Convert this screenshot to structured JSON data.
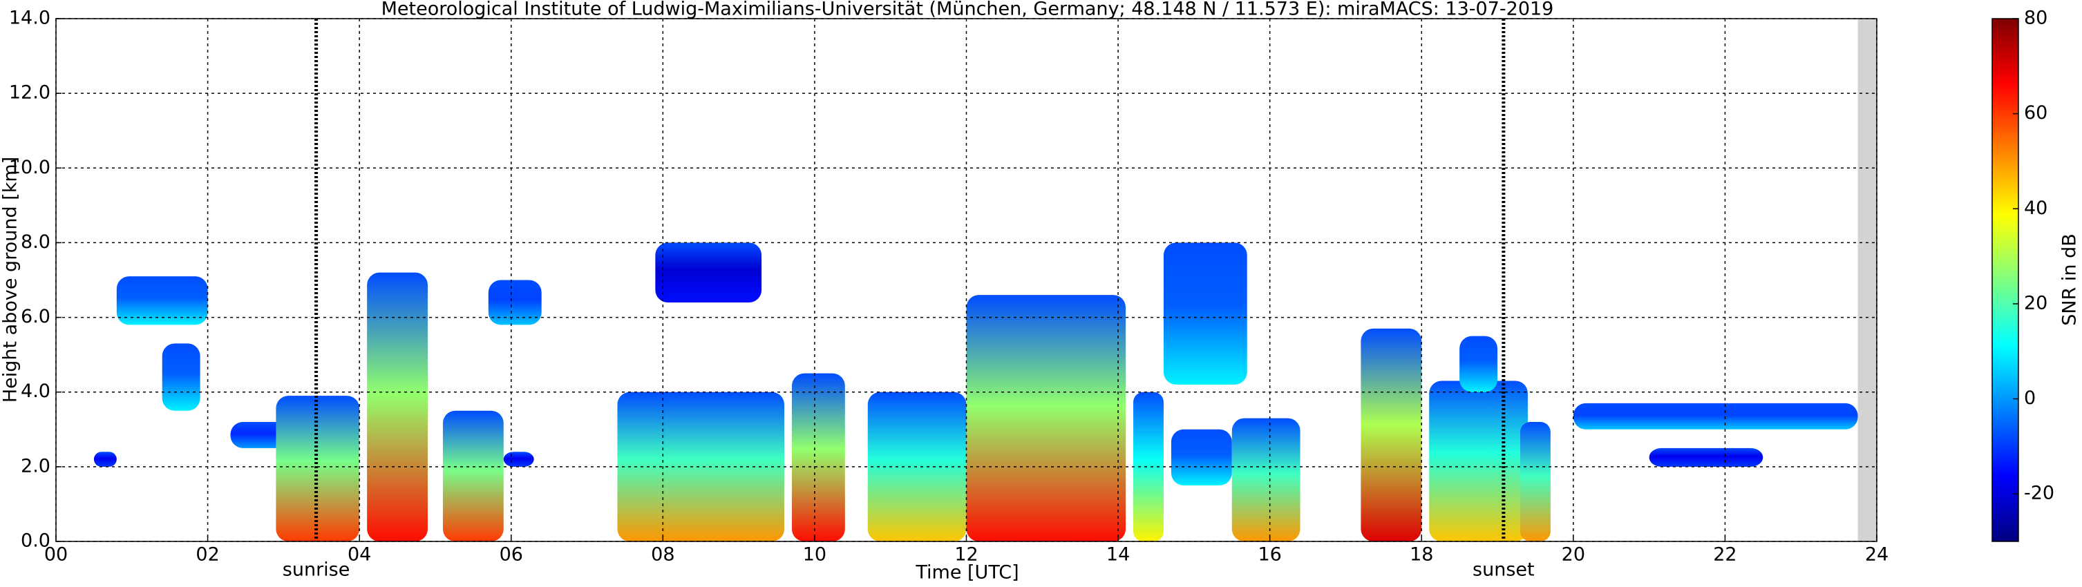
{
  "chart_data": {
    "type": "time-height",
    "title": "Meteorological Institute of Ludwig-Maximilians-Universität (München, Germany; 48.148 N / 11.573 E):    miraMACS: 13-07-2019",
    "xlabel": "Time [UTC]",
    "ylabel": "Height above ground [km]",
    "xlim": [
      0,
      24
    ],
    "xticks": [
      {
        "value": 0,
        "label": "00"
      },
      {
        "value": 2,
        "label": "02"
      },
      {
        "value": 4,
        "label": "04"
      },
      {
        "value": 6,
        "label": "06"
      },
      {
        "value": 8,
        "label": "08"
      },
      10,
      12,
      14,
      16,
      18,
      20,
      22,
      24
    ],
    "ylim": [
      0,
      14
    ],
    "yticks": [
      {
        "value": 0,
        "label": "0.0"
      },
      {
        "value": 2,
        "label": "2.0"
      },
      {
        "value": 4,
        "label": "4.0"
      },
      {
        "value": 6,
        "label": "6.0"
      },
      {
        "value": 8,
        "label": "8.0"
      },
      {
        "value": 10,
        "label": "10.0"
      },
      {
        "value": 12,
        "label": "12.0"
      },
      {
        "value": 14,
        "label": "14.0"
      }
    ],
    "grid": true,
    "no_data_x": [
      23.75,
      24
    ],
    "annotations": [
      {
        "text": "sunrise",
        "x": 3.43
      },
      {
        "text": "sunset",
        "x": 19.08
      }
    ],
    "colorbar": {
      "label": "SNR in dB",
      "clim": [
        -30,
        80
      ],
      "ticks": [
        -20,
        0,
        20,
        40,
        60,
        80
      ],
      "colormap": [
        "#00007f",
        "#0000ff",
        "#0080ff",
        "#00ffff",
        "#80ff80",
        "#ffff00",
        "#ff8000",
        "#ff0000",
        "#7f0000"
      ]
    },
    "echoes": [
      {
        "start": 0.8,
        "end": 2.0,
        "base": 5.8,
        "top": 7.1,
        "snr": 10
      },
      {
        "start": 1.4,
        "end": 1.9,
        "base": 3.5,
        "top": 5.3,
        "snr": 10
      },
      {
        "start": 0.5,
        "end": 0.8,
        "base": 2.0,
        "top": 2.4,
        "snr": -10
      },
      {
        "start": 2.3,
        "end": 3.1,
        "base": 2.5,
        "top": 3.2,
        "snr": 0
      },
      {
        "start": 2.9,
        "end": 4.0,
        "base": 0,
        "top": 3.9,
        "snr": 60
      },
      {
        "start": 4.1,
        "end": 4.9,
        "base": 0,
        "top": 7.2,
        "snr": 65
      },
      {
        "start": 5.1,
        "end": 5.9,
        "base": 0,
        "top": 3.5,
        "snr": 60
      },
      {
        "start": 5.9,
        "end": 6.3,
        "base": 2.0,
        "top": 2.4,
        "snr": -10
      },
      {
        "start": 5.7,
        "end": 6.4,
        "base": 5.8,
        "top": 7.0,
        "snr": 5
      },
      {
        "start": 7.9,
        "end": 9.3,
        "base": 6.4,
        "top": 8.0,
        "snr": -15
      },
      {
        "start": 7.4,
        "end": 9.6,
        "base": 0,
        "top": 4.0,
        "snr": 50
      },
      {
        "start": 9.7,
        "end": 10.4,
        "base": 0,
        "top": 4.5,
        "snr": 65
      },
      {
        "start": 10.7,
        "end": 12.0,
        "base": 0,
        "top": 4.0,
        "snr": 45
      },
      {
        "start": 12.0,
        "end": 14.1,
        "base": 0,
        "top": 6.6,
        "snr": 65
      },
      {
        "start": 14.2,
        "end": 14.6,
        "base": 0,
        "top": 4.0,
        "snr": 40
      },
      {
        "start": 14.7,
        "end": 15.5,
        "base": 1.5,
        "top": 3.0,
        "snr": 10
      },
      {
        "start": 14.6,
        "end": 15.7,
        "base": 4.2,
        "top": 8.0,
        "snr": 10
      },
      {
        "start": 15.5,
        "end": 16.4,
        "base": 0,
        "top": 3.3,
        "snr": 50
      },
      {
        "start": 17.2,
        "end": 18.0,
        "base": 0,
        "top": 5.7,
        "snr": 70
      },
      {
        "start": 18.1,
        "end": 19.4,
        "base": 0,
        "top": 4.3,
        "snr": 45
      },
      {
        "start": 19.3,
        "end": 19.7,
        "base": 0,
        "top": 3.2,
        "snr": 50
      },
      {
        "start": 18.5,
        "end": 19.0,
        "base": 4.0,
        "top": 5.5,
        "snr": 10
      },
      {
        "start": 20.0,
        "end": 23.75,
        "base": 3.0,
        "top": 3.7,
        "snr": 5
      },
      {
        "start": 21.0,
        "end": 22.5,
        "base": 2.0,
        "top": 2.5,
        "snr": -10
      }
    ]
  }
}
